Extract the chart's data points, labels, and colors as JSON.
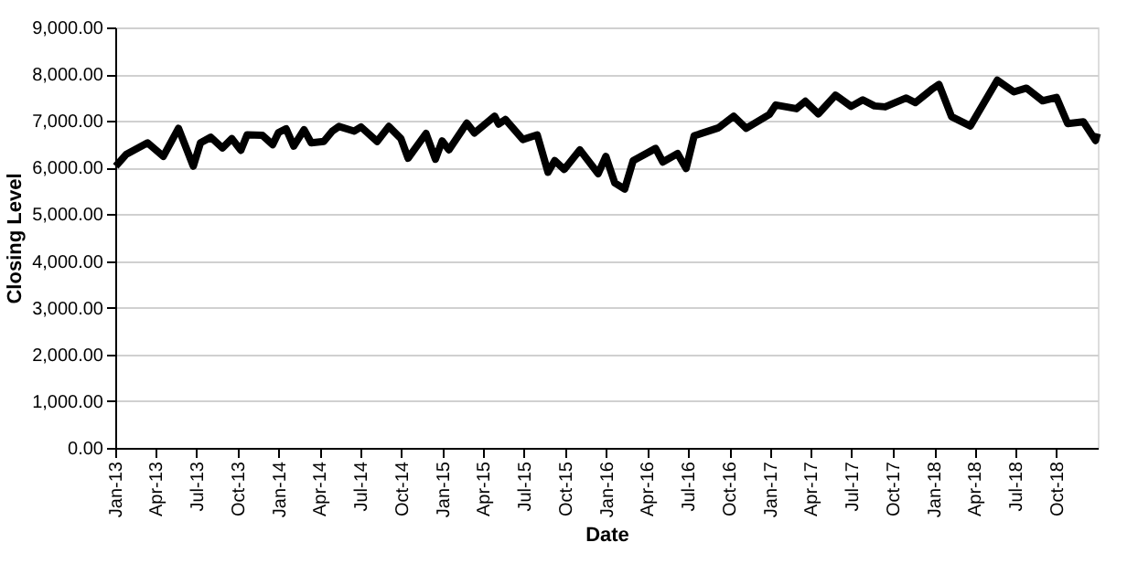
{
  "chart_data": {
    "type": "line",
    "xlabel": "Date",
    "ylabel": "Closing Level",
    "x": [
      "2013-01-02",
      "2013-01-25",
      "2013-03-14",
      "2013-04-18",
      "2013-05-22",
      "2013-06-24",
      "2013-07-10",
      "2013-08-02",
      "2013-08-28",
      "2013-09-18",
      "2013-10-08",
      "2013-10-22",
      "2013-11-25",
      "2013-12-18",
      "2013-12-31",
      "2014-01-17",
      "2014-02-03",
      "2014-02-26",
      "2014-03-14",
      "2014-04-11",
      "2014-04-30",
      "2014-05-15",
      "2014-06-18",
      "2014-07-03",
      "2014-08-08",
      "2014-09-03",
      "2014-09-30",
      "2014-10-16",
      "2014-11-25",
      "2014-12-16",
      "2014-12-31",
      "2015-01-15",
      "2015-02-24",
      "2015-03-13",
      "2015-04-27",
      "2015-05-06",
      "2015-05-21",
      "2015-06-29",
      "2015-07-31",
      "2015-08-24",
      "2015-09-08",
      "2015-09-29",
      "2015-11-03",
      "2015-12-14",
      "2015-12-31",
      "2016-01-20",
      "2016-02-11",
      "2016-03-01",
      "2016-04-20",
      "2016-05-06",
      "2016-06-08",
      "2016-06-27",
      "2016-07-15",
      "2016-09-07",
      "2016-10-11",
      "2016-11-08",
      "2016-12-30",
      "2017-01-13",
      "2017-02-28",
      "2017-03-20",
      "2017-04-18",
      "2017-05-26",
      "2017-06-30",
      "2017-07-26",
      "2017-08-21",
      "2017-09-14",
      "2017-10-31",
      "2017-11-20",
      "2017-12-29",
      "2018-01-12",
      "2018-02-09",
      "2018-03-23",
      "2018-05-22",
      "2018-06-28",
      "2018-07-26",
      "2018-08-31",
      "2018-10-01",
      "2018-10-26",
      "2018-11-30",
      "2018-12-27",
      "2018-12-31"
    ],
    "series": [
      {
        "color": "#000000",
        "values": [
          6030,
          6280,
          6530,
          6240,
          6840,
          6030,
          6530,
          6650,
          6420,
          6620,
          6370,
          6700,
          6690,
          6490,
          6750,
          6830,
          6460,
          6810,
          6530,
          6560,
          6780,
          6880,
          6780,
          6870,
          6560,
          6880,
          6620,
          6200,
          6730,
          6180,
          6570,
          6380,
          6950,
          6740,
          7100,
          6930,
          7030,
          6600,
          6700,
          5900,
          6150,
          5960,
          6380,
          5870,
          6240,
          5670,
          5540,
          6150,
          6410,
          6120,
          6300,
          5980,
          6680,
          6850,
          7100,
          6840,
          7140,
          7340,
          7260,
          7420,
          7150,
          7550,
          7310,
          7450,
          7320,
          7300,
          7490,
          7390,
          7690,
          7780,
          7090,
          6890,
          7870,
          7620,
          7700,
          7430,
          7500,
          6940,
          6980,
          6580,
          6730
        ]
      }
    ],
    "xlim": [
      "2013-01-01",
      "2019-01-01"
    ],
    "xticks": [
      {
        "value": "2013-01-01",
        "label": "Jan-13"
      },
      {
        "value": "2013-04-01",
        "label": "Apr-13"
      },
      {
        "value": "2013-07-01",
        "label": "Jul-13"
      },
      {
        "value": "2013-10-01",
        "label": "Oct-13"
      },
      {
        "value": "2014-01-01",
        "label": "Jan-14"
      },
      {
        "value": "2014-04-01",
        "label": "Apr-14"
      },
      {
        "value": "2014-07-01",
        "label": "Jul-14"
      },
      {
        "value": "2014-10-01",
        "label": "Oct-14"
      },
      {
        "value": "2015-01-01",
        "label": "Jan-15"
      },
      {
        "value": "2015-04-01",
        "label": "Apr-15"
      },
      {
        "value": "2015-07-01",
        "label": "Jul-15"
      },
      {
        "value": "2015-10-01",
        "label": "Oct-15"
      },
      {
        "value": "2016-01-01",
        "label": "Jan-16"
      },
      {
        "value": "2016-04-01",
        "label": "Apr-16"
      },
      {
        "value": "2016-07-01",
        "label": "Jul-16"
      },
      {
        "value": "2016-10-01",
        "label": "Oct-16"
      },
      {
        "value": "2017-01-01",
        "label": "Jan-17"
      },
      {
        "value": "2017-04-01",
        "label": "Apr-17"
      },
      {
        "value": "2017-07-01",
        "label": "Jul-17"
      },
      {
        "value": "2017-10-01",
        "label": "Oct-17"
      },
      {
        "value": "2018-01-01",
        "label": "Jan-18"
      },
      {
        "value": "2018-04-01",
        "label": "Apr-18"
      },
      {
        "value": "2018-07-01",
        "label": "Jul-18"
      },
      {
        "value": "2018-10-01",
        "label": "Oct-18"
      }
    ],
    "ylim": [
      0,
      9000
    ],
    "yticks": [
      {
        "value": 0,
        "label": "0.00"
      },
      {
        "value": 1000,
        "label": "1,000.00"
      },
      {
        "value": 2000,
        "label": "2,000.00"
      },
      {
        "value": 3000,
        "label": "3,000.00"
      },
      {
        "value": 4000,
        "label": "4,000.00"
      },
      {
        "value": 5000,
        "label": "5,000.00"
      },
      {
        "value": 6000,
        "label": "6,000.00"
      },
      {
        "value": 7000,
        "label": "7,000.00"
      },
      {
        "value": 8000,
        "label": "8,000.00"
      },
      {
        "value": 9000,
        "label": "9,000.00"
      }
    ],
    "grid": "y",
    "marker": "none",
    "line_style": "solid"
  }
}
